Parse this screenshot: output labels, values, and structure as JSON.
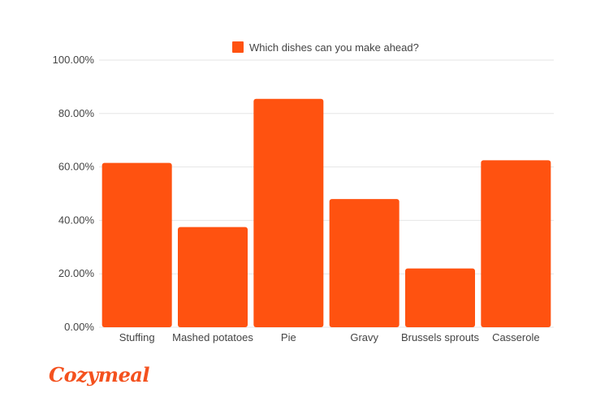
{
  "brand": {
    "logo_text": "Cozymeal"
  },
  "colors": {
    "bar": "#ff5210",
    "grid": "#e6e6e6",
    "axis_text": "#444444",
    "logo": "#f4511e"
  },
  "chart_data": {
    "type": "bar",
    "categories": [
      "Stuffing",
      "Mashed potatoes",
      "Pie",
      "Gravy",
      "Brussels sprouts",
      "Casserole"
    ],
    "series": [
      {
        "name": "Which dishes can you make ahead?",
        "values": [
          61.5,
          37.5,
          85.5,
          48.0,
          22.0,
          62.5
        ]
      }
    ],
    "y_ticks": [
      "0.00%",
      "20.00%",
      "40.00%",
      "60.00%",
      "80.00%",
      "100.00%"
    ],
    "ylim": [
      0,
      100
    ],
    "y_format": "percent",
    "grid": true,
    "legend_position": "top"
  }
}
